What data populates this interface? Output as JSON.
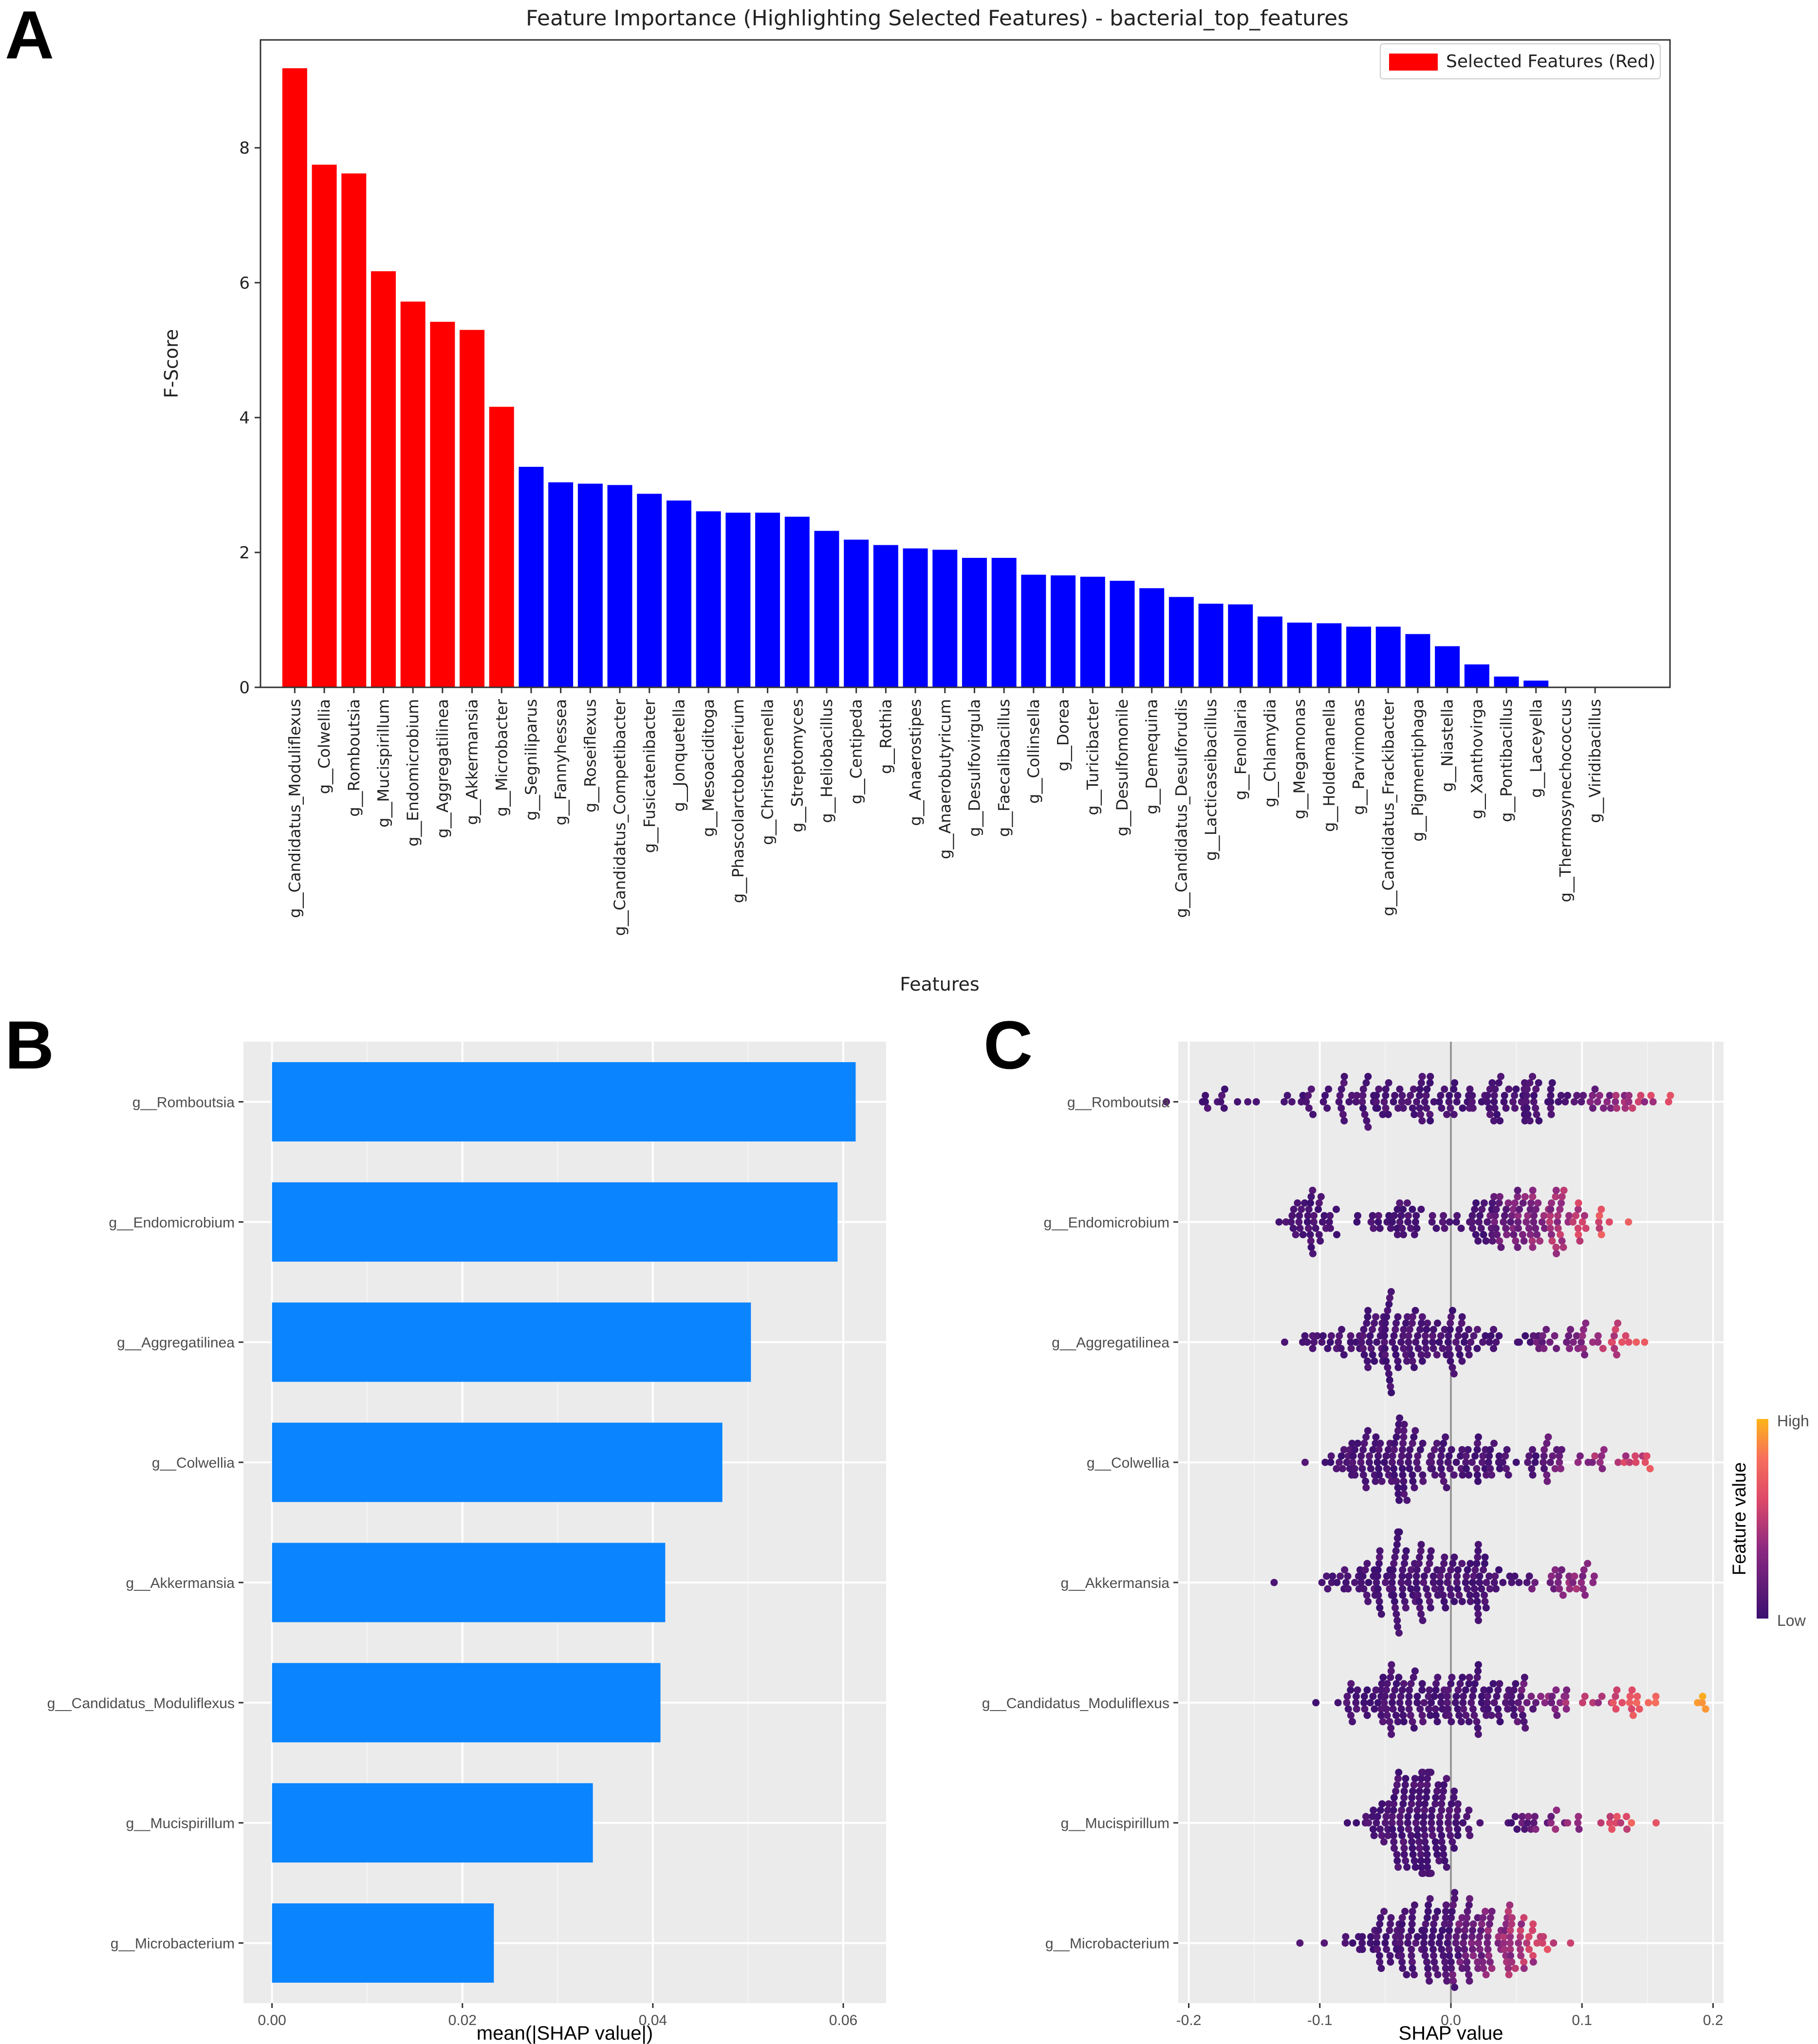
{
  "panel_labels": [
    "A",
    "B",
    "C"
  ],
  "colors": {
    "selected": "#ff0000",
    "other": "#0000ff",
    "shap_bar": "#0a84ff",
    "gg_bg": "#ebebeb",
    "low": "#3b0f70",
    "high": "#fcb519"
  },
  "chart_data": [
    {
      "id": "A",
      "type": "bar",
      "title": "Feature Importance (Highlighting Selected Features) - bacterial_top_features",
      "xlabel": "Features",
      "ylabel": "F-Score",
      "ylim": [
        0,
        9.6
      ],
      "yticks": [
        0,
        2,
        4,
        6,
        8
      ],
      "legend": {
        "label": "Selected Features (Red)",
        "position": "top-right"
      },
      "selected_count": 8,
      "categories": [
        "g__Candidatus_Moduliflexus",
        "g__Colwellia",
        "g__Romboutsia",
        "g__Mucispirillum",
        "g__Endomicrobium",
        "g__Aggregatilinea",
        "g__Akkermansia",
        "g__Microbacter",
        "g__Segniliparus",
        "g__Fannyhessea",
        "g__Roseiflexus",
        "g__Candidatus_Competibacter",
        "g__Fusicatenibacter",
        "g__Jonquetella",
        "g__Mesoaciditoga",
        "g__Phascolarctobacterium",
        "g__Christensenella",
        "g__Streptomyces",
        "g__Heliobacillus",
        "g__Centipeda",
        "g__Rothia",
        "g__Anaerostipes",
        "g__Anaerobutyricum",
        "g__Desulfovirgula",
        "g__Faecalibacillus",
        "g__Collinsella",
        "g__Dorea",
        "g__Turicibacter",
        "g__Desulfomonile",
        "g__Demequina",
        "g__Candidatus_Desulforudis",
        "g__Lacticaseibacillus",
        "g__Fenollaria",
        "g__Chlamydia",
        "g__Megamonas",
        "g__Holdemanella",
        "g__Parvimonas",
        "g__Candidatus_Frackibacter",
        "g__Pigmentiphaga",
        "g__Niastella",
        "g__Xanthovirga",
        "g__Pontibacillus",
        "g__Laceyella",
        "g__Thermosynechococcus",
        "g__Viridibacillus"
      ],
      "values": [
        9.18,
        7.75,
        7.62,
        6.17,
        5.72,
        5.42,
        5.3,
        4.16,
        3.27,
        3.04,
        3.02,
        3.0,
        2.87,
        2.77,
        2.61,
        2.59,
        2.59,
        2.53,
        2.32,
        2.19,
        2.11,
        2.06,
        2.04,
        1.92,
        1.92,
        1.67,
        1.66,
        1.64,
        1.58,
        1.47,
        1.34,
        1.24,
        1.23,
        1.05,
        0.96,
        0.95,
        0.9,
        0.9,
        0.79,
        0.61,
        0.34,
        0.16,
        0.1,
        0.0,
        0.0
      ]
    },
    {
      "id": "B",
      "type": "bar",
      "orientation": "horizontal",
      "xlabel": "mean(|SHAP value|)",
      "ylabel": "",
      "xlim": [
        -0.003,
        0.0645
      ],
      "xticks": [
        "0.00",
        "0.02",
        "0.04",
        "0.06"
      ],
      "xtick_values": [
        0,
        0.02,
        0.04,
        0.06
      ],
      "categories": [
        "g__Romboutsia",
        "g__Endomicrobium",
        "g__Aggregatilinea",
        "g__Colwellia",
        "g__Akkermansia",
        "g__Candidatus_Moduliflexus",
        "g__Mucispirillum",
        "g__Microbacterium"
      ],
      "values": [
        0.0613,
        0.0594,
        0.0503,
        0.0473,
        0.0413,
        0.0408,
        0.0337,
        0.0233
      ]
    },
    {
      "id": "C",
      "type": "scatter",
      "subtype": "beeswarm",
      "xlabel": "SHAP value",
      "xlim": [
        -0.208,
        0.208
      ],
      "xticks": [
        "-0.2",
        "-0.1",
        "0.0",
        "0.1",
        "0.2"
      ],
      "xtick_values": [
        -0.2,
        -0.1,
        0,
        0.1,
        0.2
      ],
      "colorbar": {
        "title": "Feature value",
        "high": "High",
        "low": "Low"
      },
      "features": [
        {
          "name": "g__Romboutsia",
          "n": 200,
          "clusters": [
            {
              "mu": -0.18,
              "sd": 0.018,
              "w": 0.06
            },
            {
              "mu": -0.075,
              "sd": 0.028,
              "w": 0.24
            },
            {
              "mu": 0.005,
              "sd": 0.035,
              "w": 0.42
            },
            {
              "mu": 0.08,
              "sd": 0.035,
              "w": 0.23
            },
            {
              "mu": 0.14,
              "sd": 0.012,
              "w": 0.05
            }
          ],
          "hi_x": 0.09
        },
        {
          "name": "g__Endomicrobium",
          "n": 200,
          "clusters": [
            {
              "mu": -0.105,
              "sd": 0.012,
              "w": 0.2
            },
            {
              "mu": -0.04,
              "sd": 0.015,
              "w": 0.18
            },
            {
              "mu": 0.035,
              "sd": 0.02,
              "w": 0.32
            },
            {
              "mu": 0.08,
              "sd": 0.02,
              "w": 0.3
            }
          ],
          "hi_x": 0.03
        },
        {
          "name": "g__Aggregatilinea",
          "n": 200,
          "clusters": [
            {
              "mu": -0.05,
              "sd": 0.03,
              "w": 0.6
            },
            {
              "mu": 0.01,
              "sd": 0.02,
              "w": 0.18
            },
            {
              "mu": 0.07,
              "sd": 0.02,
              "w": 0.12
            },
            {
              "mu": 0.11,
              "sd": 0.02,
              "w": 0.1
            }
          ],
          "hi_x": 0.06
        },
        {
          "name": "g__Colwellia",
          "n": 200,
          "clusters": [
            {
              "mu": -0.04,
              "sd": 0.025,
              "w": 0.58
            },
            {
              "mu": 0.02,
              "sd": 0.015,
              "w": 0.2
            },
            {
              "mu": 0.07,
              "sd": 0.012,
              "w": 0.14
            },
            {
              "mu": 0.125,
              "sd": 0.018,
              "w": 0.08
            }
          ],
          "hi_x": 0.07
        },
        {
          "name": "g__Akkermansia",
          "n": 200,
          "clusters": [
            {
              "mu": -0.035,
              "sd": 0.035,
              "w": 0.62
            },
            {
              "mu": 0.015,
              "sd": 0.025,
              "w": 0.26
            },
            {
              "mu": 0.09,
              "sd": 0.012,
              "w": 0.12
            }
          ],
          "hi_x": 0.06
        },
        {
          "name": "g__Candidatus_Moduliflexus",
          "n": 210,
          "clusters": [
            {
              "mu": -0.055,
              "sd": 0.025,
              "w": 0.3
            },
            {
              "mu": 0.0,
              "sd": 0.025,
              "w": 0.4
            },
            {
              "mu": 0.06,
              "sd": 0.02,
              "w": 0.18
            },
            {
              "mu": 0.13,
              "sd": 0.025,
              "w": 0.1
            },
            {
              "mu": 0.19,
              "sd": 0.002,
              "w": 0.02
            }
          ],
          "hi_x": 0.05
        },
        {
          "name": "g__Mucispirillum",
          "n": 200,
          "clusters": [
            {
              "mu": -0.025,
              "sd": 0.018,
              "w": 0.82
            },
            {
              "mu": 0.07,
              "sd": 0.03,
              "w": 0.12
            },
            {
              "mu": 0.135,
              "sd": 0.012,
              "w": 0.06
            }
          ],
          "hi_x": 0.05
        },
        {
          "name": "g__Microbacterium",
          "n": 220,
          "clusters": [
            {
              "mu": -0.04,
              "sd": 0.02,
              "w": 0.3
            },
            {
              "mu": 0.005,
              "sd": 0.02,
              "w": 0.5
            },
            {
              "mu": 0.05,
              "sd": 0.015,
              "w": 0.2
            }
          ],
          "hi_x": 0.0
        }
      ]
    }
  ]
}
